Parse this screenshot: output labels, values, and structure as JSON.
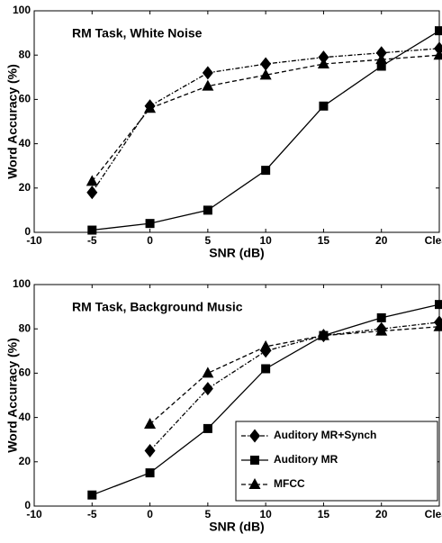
{
  "chart_data": [
    {
      "type": "line",
      "title": "RM Task, White Noise",
      "x_label": "SNR (dB)",
      "y_label": "Word Accuracy (%)",
      "x": [
        -5,
        0,
        5,
        10,
        15,
        20,
        25
      ],
      "series": [
        {
          "color": "#000000",
          "linestyle": "dashdot",
          "marker": "diamond",
          "values": [
            18,
            57,
            72,
            76,
            79,
            81,
            83
          ]
        },
        {
          "color": "#000000",
          "linestyle": "solid",
          "marker": "square",
          "values": [
            1,
            4,
            10,
            28,
            57,
            75,
            91
          ]
        },
        {
          "color": "#000000",
          "linestyle": "dashed",
          "marker": "triangle",
          "values": [
            23,
            56,
            66,
            71,
            76,
            78,
            80
          ]
        }
      ],
      "xlim": [
        -10,
        25
      ],
      "xticks": [
        -10,
        -5,
        0,
        5,
        10,
        15,
        20,
        {
          "value": 25,
          "label": "Clean"
        }
      ],
      "ylim": [
        0,
        100
      ],
      "yticks": [
        0,
        20,
        40,
        60,
        80,
        100
      ]
    },
    {
      "type": "line",
      "title": "RM Task, Background Music",
      "x_label": "SNR (dB)",
      "y_label": "Word Accuracy (%)",
      "x": [
        -5,
        0,
        5,
        10,
        15,
        20,
        25
      ],
      "series": [
        {
          "name": "Auditory MR+Synch",
          "color": "#000000",
          "linestyle": "dashdot",
          "marker": "diamond",
          "values": [
            null,
            25,
            53,
            70,
            77,
            80,
            83
          ]
        },
        {
          "name": "Auditory MR",
          "color": "#000000",
          "linestyle": "solid",
          "marker": "square",
          "values": [
            5,
            15,
            35,
            62,
            77,
            85,
            91
          ]
        },
        {
          "name": "MFCC",
          "color": "#000000",
          "linestyle": "dashed",
          "marker": "triangle",
          "values": [
            null,
            37,
            60,
            72,
            77,
            79,
            81
          ]
        }
      ],
      "xlim": [
        -10,
        25
      ],
      "xticks": [
        -10,
        -5,
        0,
        5,
        10,
        15,
        20,
        {
          "value": 25,
          "label": "Clean"
        }
      ],
      "ylim": [
        0,
        100
      ],
      "yticks": [
        0,
        20,
        40,
        60,
        80,
        100
      ],
      "legend": "lower right"
    }
  ]
}
